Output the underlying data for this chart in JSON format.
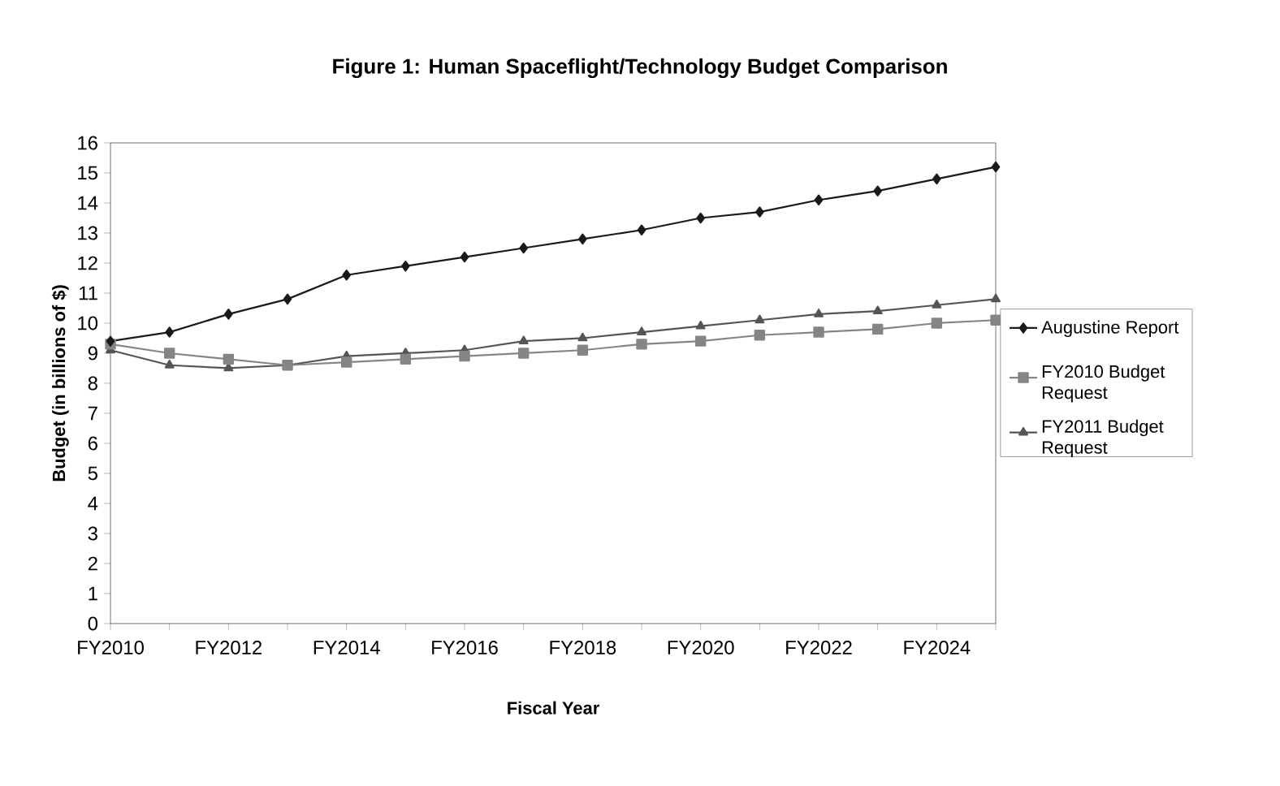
{
  "chart_data": {
    "type": "line",
    "title": "Figure 1: Human Spaceflight/Technology Budget Comparison",
    "xlabel": "Fiscal Year",
    "ylabel": "Budget (in billions of $)",
    "categories": [
      "FY2010",
      null,
      "FY2012",
      null,
      "FY2014",
      null,
      "FY2016",
      null,
      "FY2018",
      null,
      "FY2020",
      null,
      "FY2022",
      null,
      "FY2024",
      null
    ],
    "series": [
      {
        "name": "Augustine Report",
        "color": "#1a1a1a",
        "marker": "diamond",
        "values": [
          9.4,
          9.7,
          10.3,
          10.8,
          11.6,
          11.9,
          12.2,
          12.5,
          12.8,
          13.1,
          13.5,
          13.7,
          14.1,
          14.4,
          14.8,
          15.2
        ]
      },
      {
        "name": "FY2010 Budget Request",
        "color": "#858585",
        "marker": "square",
        "values": [
          9.3,
          9.0,
          8.8,
          8.6,
          8.7,
          8.8,
          8.9,
          9.0,
          9.1,
          9.3,
          9.4,
          9.6,
          9.7,
          9.8,
          10.0,
          10.1
        ]
      },
      {
        "name": "FY2011 Budget Request",
        "color": "#555555",
        "marker": "triangle",
        "values": [
          9.1,
          8.6,
          8.5,
          8.6,
          8.9,
          9.0,
          9.1,
          9.4,
          9.5,
          9.7,
          9.9,
          10.1,
          10.3,
          10.4,
          10.6,
          10.8
        ]
      }
    ],
    "ylim": [
      0,
      16
    ],
    "yticks": [
      0,
      1,
      2,
      3,
      4,
      5,
      6,
      7,
      8,
      9,
      10,
      11,
      12,
      13,
      14,
      15,
      16
    ],
    "grid": false,
    "legend": "right",
    "line_style": "solid"
  }
}
